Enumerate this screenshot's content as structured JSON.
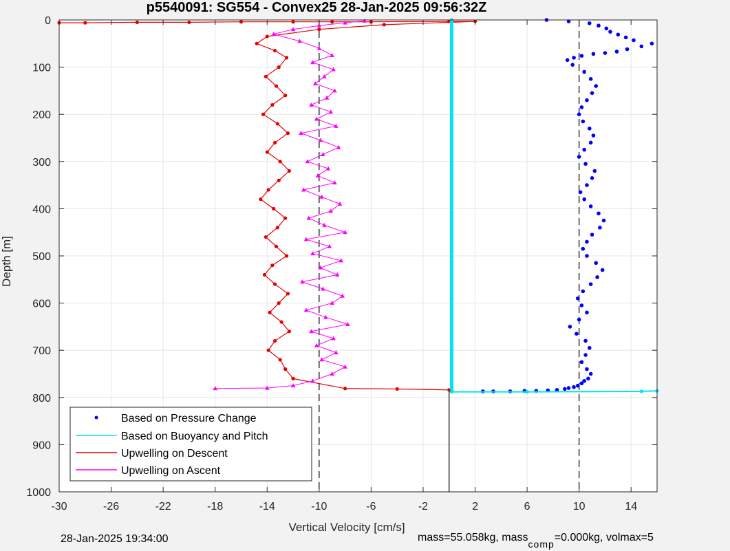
{
  "chart_data": {
    "type": "scatter",
    "title": "p5540091: SG554 - Convex25 28-Jan-2025 09:56:32Z",
    "xlabel": "Vertical Velocity [cm/s]",
    "ylabel": "Depth [m]",
    "xlim": [
      -30,
      16
    ],
    "ylim": [
      0,
      1000
    ],
    "y_reversed": true,
    "grid": true,
    "legend_position": "bottom-left",
    "x_ticks": [
      -30,
      -26,
      -22,
      -18,
      -14,
      -10,
      -6,
      -2,
      2,
      6,
      10,
      14
    ],
    "y_ticks": [
      0,
      100,
      200,
      300,
      400,
      500,
      600,
      700,
      800,
      900,
      1000
    ],
    "reference_lines": [
      {
        "x": -10,
        "style": "dashed",
        "depth_range": [
          0,
          1000
        ]
      },
      {
        "x": 10,
        "style": "dashed",
        "depth_range": [
          0,
          1000
        ]
      },
      {
        "x": 0,
        "style": "solid",
        "depth_range": [
          785,
          1000
        ]
      }
    ],
    "series": [
      {
        "name": "Based on Pressure Change",
        "color": "#0000ff",
        "marker": "dot",
        "x": [
          7.5,
          9.2,
          10.8,
          11.5,
          12.1,
          12.4,
          13.0,
          13.6,
          14.2,
          15.6,
          14.8,
          13.7,
          12.9,
          12.0,
          11.1,
          10.2,
          9.6,
          9.1,
          9.5,
          10.4,
          10.9,
          11.3,
          11.0,
          10.6,
          10.2,
          10.0,
          10.3,
          10.8,
          11.1,
          10.9,
          10.4,
          10.0,
          10.5,
          11.2,
          11.0,
          10.6,
          10.1,
          10.4,
          10.9,
          11.5,
          11.9,
          11.6,
          11.0,
          10.6,
          10.3,
          10.6,
          11.3,
          11.8,
          11.4,
          10.9,
          10.3,
          9.9,
          10.2,
          10.6,
          10.0,
          9.3,
          9.8,
          10.5,
          10.8,
          10.5,
          10.2,
          10.6,
          10.9,
          10.7,
          10.4,
          10.2,
          9.9,
          9.6,
          9.2,
          8.9,
          8.3,
          7.6,
          6.7,
          5.8,
          4.7,
          3.4,
          2.6,
          0.2
        ],
        "y": [
          0,
          3,
          7,
          12,
          18,
          25,
          31,
          37,
          43,
          50,
          56,
          62,
          67,
          70,
          72,
          76,
          80,
          85,
          95,
          110,
          125,
          140,
          155,
          170,
          185,
          200,
          215,
          230,
          245,
          260,
          275,
          290,
          305,
          320,
          335,
          350,
          365,
          380,
          395,
          410,
          425,
          440,
          455,
          470,
          485,
          500,
          515,
          530,
          545,
          560,
          575,
          590,
          605,
          620,
          635,
          650,
          665,
          680,
          695,
          710,
          725,
          740,
          750,
          760,
          765,
          770,
          775,
          778,
          780,
          782,
          784,
          785,
          786,
          786,
          787,
          787,
          787,
          787
        ]
      },
      {
        "name": "Based on Buoyancy and Pitch",
        "color": "#00e5ee",
        "marker": "dot-line",
        "x": [
          0.2,
          0.2,
          0.2,
          0.2,
          0.2,
          0.2,
          0.2,
          0.2,
          0.2,
          0.2,
          0.2,
          0.2,
          0.2,
          6.0,
          14.8,
          16.0
        ],
        "y": [
          0,
          100,
          200,
          300,
          400,
          500,
          600,
          700,
          750,
          780,
          785,
          787,
          788,
          788,
          787,
          786
        ]
      },
      {
        "name": "Upwelling on Descent",
        "color": "#e60000",
        "marker": "dot-line",
        "x": [
          -30,
          -28,
          -24,
          -20,
          -16,
          -12,
          -9,
          -6,
          0,
          2,
          -5,
          -10,
          -14,
          -14.8,
          -13.4,
          -12.5,
          -13.1,
          -14.1,
          -13.3,
          -12.6,
          -13.6,
          -14.3,
          -13.2,
          -12.4,
          -13.4,
          -14.0,
          -13.0,
          -12.3,
          -13.1,
          -13.9,
          -14.5,
          -13.5,
          -12.6,
          -13.2,
          -14.1,
          -13.3,
          -12.5,
          -13.6,
          -14.2,
          -13.4,
          -12.4,
          -13.1,
          -13.8,
          -12.9,
          -12.3,
          -13.4,
          -13.9,
          -13.0,
          -12.6,
          -12.0,
          -8.0,
          -4.0,
          0.0
        ],
        "y": [
          6,
          6,
          5,
          5,
          4,
          4,
          4,
          4,
          3,
          3,
          10,
          20,
          35,
          50,
          65,
          80,
          100,
          120,
          140,
          160,
          180,
          200,
          220,
          240,
          260,
          280,
          300,
          320,
          340,
          360,
          380,
          400,
          420,
          440,
          460,
          480,
          500,
          520,
          540,
          560,
          580,
          600,
          620,
          640,
          660,
          680,
          700,
          720,
          740,
          760,
          781,
          782,
          784
        ]
      },
      {
        "name": "Upwelling on Ascent",
        "color": "#ff00ff",
        "marker": "triangle-line",
        "x": [
          -18.0,
          -14.0,
          -12.0,
          -10.5,
          -9.0,
          -8.0,
          -9.8,
          -8.7,
          -10.2,
          -8.9,
          -10.6,
          -7.8,
          -9.5,
          -11.0,
          -9.0,
          -8.2,
          -9.7,
          -11.3,
          -8.6,
          -9.9,
          -8.3,
          -10.5,
          -9.2,
          -11.0,
          -8.0,
          -9.6,
          -10.8,
          -9.1,
          -8.4,
          -9.8,
          -11.2,
          -8.8,
          -10.1,
          -9.3,
          -10.9,
          -9.7,
          -8.5,
          -9.9,
          -11.4,
          -8.7,
          -10.2,
          -9.1,
          -10.6,
          -9.4,
          -8.8,
          -10.3,
          -9.6,
          -8.9,
          -10.5,
          -9.0,
          -10.0,
          -11.5,
          -13.5,
          -12.0,
          -10.0,
          -8.0,
          -6.5
        ],
        "y": [
          781,
          780,
          775,
          765,
          750,
          735,
          720,
          705,
          690,
          675,
          660,
          645,
          630,
          615,
          600,
          585,
          570,
          555,
          540,
          525,
          510,
          495,
          480,
          465,
          450,
          435,
          420,
          405,
          390,
          375,
          360,
          345,
          330,
          315,
          300,
          285,
          270,
          255,
          240,
          225,
          210,
          195,
          180,
          165,
          150,
          135,
          120,
          105,
          90,
          75,
          60,
          45,
          30,
          20,
          12,
          6,
          2
        ]
      }
    ]
  },
  "footer": {
    "timestamp": "28-Jan-2025 19:34:00",
    "params_pre": "mass=55.058kg, mass",
    "params_sub": "comp",
    "params_post": "=0.000kg, volmax=5"
  },
  "legend_entries": [
    "Based on Pressure Change",
    "Based on Buoyancy and Pitch",
    "Upwelling on Descent",
    "Upwelling on Ascent"
  ]
}
